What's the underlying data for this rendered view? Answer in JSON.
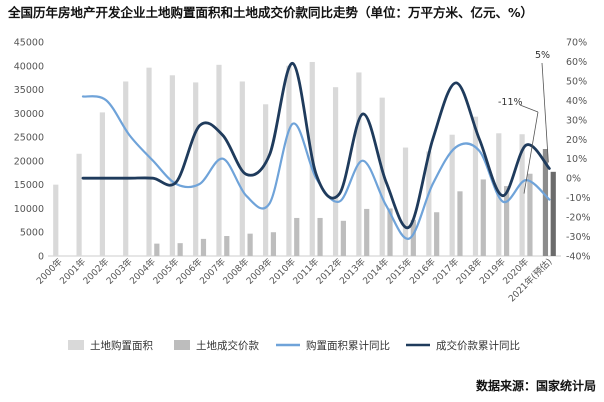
{
  "chart_data": {
    "type": "bar",
    "title": "全国历年房地产开发企业土地购置面积和土地成交价款同比走势（单位：万平方米、亿元、%）",
    "categories": [
      "2000年",
      "2001年",
      "2002年",
      "2003年",
      "2004年",
      "2005年",
      "2006年",
      "2007年",
      "2008年",
      "2009年",
      "2010年",
      "2011年",
      "2012年",
      "2013年",
      "2014年",
      "2015年",
      "2016年",
      "2017年",
      "2018年",
      "2019年",
      "2020年",
      "2021年(预估)"
    ],
    "y_left": {
      "ylim": [
        0,
        45000
      ],
      "ticks": [
        "0",
        "5000",
        "10000",
        "15000",
        "20000",
        "25000",
        "30000",
        "35000",
        "40000",
        "45000"
      ]
    },
    "y_right": {
      "ylim": [
        -40,
        70
      ],
      "ticks": [
        "-40%",
        "-30%",
        "-20%",
        "-10%",
        "0%",
        "10%",
        "20%",
        "30%",
        "40%",
        "50%",
        "60%",
        "70%"
      ]
    },
    "series": [
      {
        "name": "土地购置面积",
        "type": "bar",
        "axis": "left",
        "color": "#d9d9d9",
        "values": [
          15000,
          21500,
          30200,
          36700,
          39600,
          38000,
          36500,
          40200,
          36700,
          31900,
          40000,
          40800,
          35500,
          38600,
          33300,
          22800,
          22000,
          25500,
          29300,
          25800,
          25600,
          22500
        ]
      },
      {
        "name": "土地成交价款",
        "type": "bar",
        "axis": "left",
        "color": "#bdbdbd",
        "values": [
          null,
          null,
          null,
          null,
          2600,
          2700,
          3600,
          4200,
          4700,
          5000,
          8000,
          8000,
          7400,
          9900,
          10000,
          7600,
          9200,
          13600,
          16100,
          14700,
          17300,
          17700
        ]
      },
      {
        "name": "购置面积累计同比",
        "type": "line",
        "axis": "right",
        "color": "#6fa3d9",
        "values": [
          null,
          42,
          40,
          22,
          9,
          -3,
          -3,
          10,
          -9,
          -13,
          28,
          0,
          -12,
          9,
          -14,
          -31,
          -3,
          16,
          14,
          -12,
          -1,
          -11
        ]
      },
      {
        "name": "成交价款累计同比",
        "type": "line",
        "axis": "right",
        "color": "#1f3b5c",
        "values": [
          null,
          0,
          0,
          0,
          0,
          -2,
          27,
          22,
          2,
          12,
          59,
          2,
          -8,
          33,
          -2,
          -25,
          20,
          49,
          20,
          -9,
          17,
          5
        ]
      }
    ],
    "annotations": [
      {
        "text": "5%",
        "index": 21,
        "value": 5
      },
      {
        "text": "-11%",
        "index": 20,
        "value": -11
      }
    ],
    "legend_position": "bottom",
    "grid": false
  },
  "source": "数据来源：国家统计局"
}
